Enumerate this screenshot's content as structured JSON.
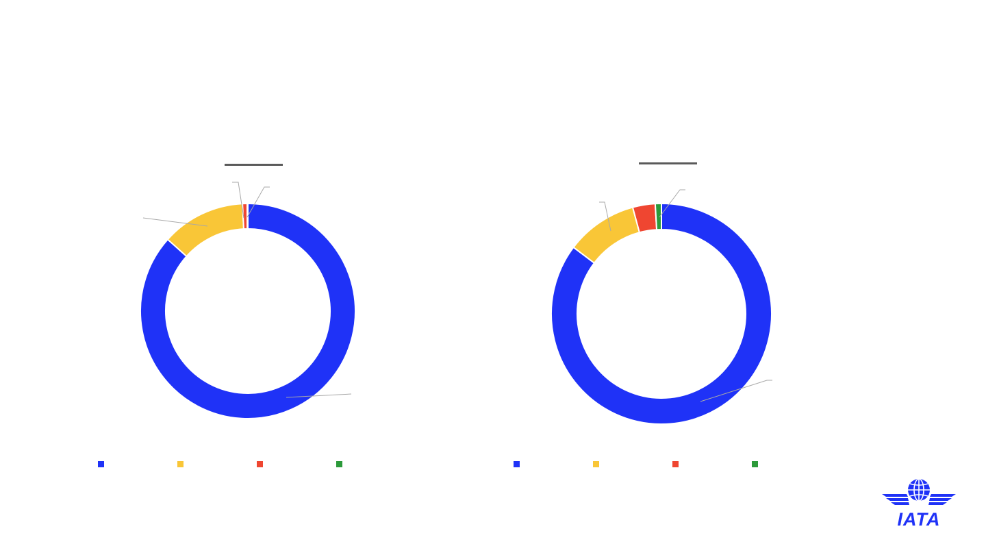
{
  "colors": {
    "blue": "#1f32f7",
    "yellow": "#f9c637",
    "red": "#ef4631",
    "green": "#2c9a3a",
    "leader": "#a8a8a8",
    "logo": "#1f32f7"
  },
  "charts": [
    {
      "title": "",
      "chart_data": {
        "type": "pie",
        "donut": true,
        "slices": [
          {
            "category": "",
            "value": 86.6,
            "color": "#1f32f7"
          },
          {
            "category": "",
            "value": 12.6,
            "color": "#f9c637"
          },
          {
            "category": "",
            "value": 0.7,
            "color": "#ef4631"
          },
          {
            "category": "",
            "value": 0.1,
            "color": "#2c9a3a"
          }
        ],
        "data_labels": [
          "",
          "",
          "",
          ""
        ],
        "legend": "bottom"
      }
    },
    {
      "title": "",
      "chart_data": {
        "type": "pie",
        "donut": true,
        "slices": [
          {
            "category": "",
            "value": 85.3,
            "color": "#1f32f7"
          },
          {
            "category": "",
            "value": 10.5,
            "color": "#f9c637"
          },
          {
            "category": "",
            "value": 3.3,
            "color": "#ef4631"
          },
          {
            "category": "",
            "value": 0.9,
            "color": "#2c9a3a"
          }
        ],
        "data_labels": [
          "",
          "",
          "",
          ""
        ],
        "legend": "bottom"
      }
    }
  ],
  "logo": {
    "text": "IATA"
  }
}
